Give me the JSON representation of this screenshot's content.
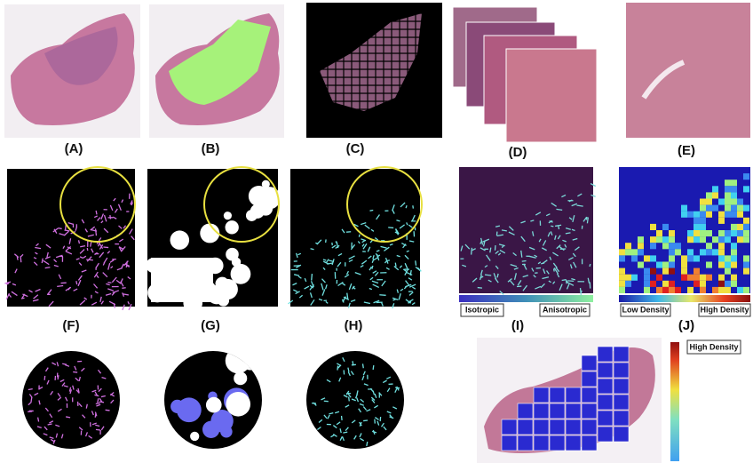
{
  "panel_labels": [
    "(A)",
    "(B)",
    "(C)",
    "(D)",
    "(E)",
    "(F)",
    "(G)",
    "(H)",
    "(I)",
    "(J)"
  ],
  "panel_i": {
    "left_label": "Isotropic",
    "right_label": "Anisotropic"
  },
  "panel_j": {
    "left_label": "Low Density",
    "right_label": "High Density"
  },
  "overlay": {
    "colorbar_label": "High Density"
  }
}
